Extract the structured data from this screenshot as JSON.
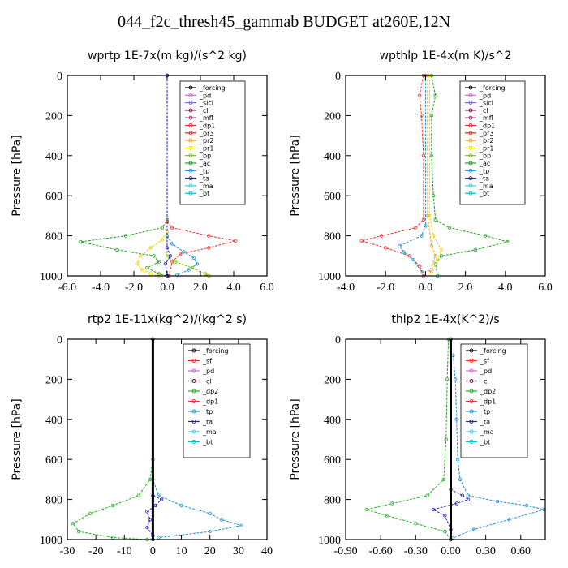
{
  "title": "044_f2c_thresh45_gammab  BUDGET at260E,12N",
  "colors": {
    "_forcing": "#000000",
    "_pd": "#cc66cc",
    "_sicl": "#7b6fd0",
    "_cl": "#800040",
    "_mfl": "#b00058",
    "_dp1": "#f03030",
    "_pr3": "#f02020",
    "_pr2": "#f0a020",
    "_pr1": "#f0d000",
    "_bp": "#80c000",
    "_ac": "#20a020",
    "_tp": "#2090d0",
    "_ta": "#2020c0",
    "_ma": "#40c8e0",
    "_bt": "#00c0d0",
    "_sf": "#f03030",
    "_dp2": "#20b020"
  },
  "chart_data": [
    {
      "type": "line",
      "title": "wprtp   1E-7x(m kg)/(s^2 kg)",
      "ylabel": "Pressure  [hPa]",
      "xlim": [
        -6,
        6
      ],
      "ylim": [
        0,
        1000
      ],
      "xticks": [
        -6,
        -4,
        -2,
        0,
        2,
        4,
        6
      ],
      "xtick_labels": [
        "-6.0",
        "-4.0",
        "-2.0",
        "0.0",
        "2.0",
        "4.0",
        "6.0"
      ],
      "yticks": [
        0,
        200,
        400,
        600,
        800,
        1000
      ],
      "ytick_labels": [
        "0",
        "200",
        "400",
        "600",
        "800",
        "1000"
      ],
      "legend_position": "top-right",
      "legend": [
        "_forcing",
        "_pd",
        "_sicl",
        "_cl",
        "_mfl",
        "_dp1",
        "_pr3",
        "_pr2",
        "_pr1",
        "_bp",
        "_ac",
        "_tp",
        "_ta",
        "_ma",
        "_bt"
      ],
      "series": [
        {
          "name": "_ac",
          "values": [
            [
              0,
              0
            ],
            [
              0,
              720
            ],
            [
              -0.3,
              760
            ],
            [
              -2.5,
              800
            ],
            [
              -5.2,
              830
            ],
            [
              -3,
              870
            ],
            [
              -0.8,
              900
            ],
            [
              -0.5,
              930
            ],
            [
              -1.2,
              960
            ],
            [
              -0.5,
              990
            ],
            [
              0,
              1000
            ]
          ]
        },
        {
          "name": "_dp1",
          "values": [
            [
              0,
              0
            ],
            [
              0,
              730
            ],
            [
              0.3,
              760
            ],
            [
              2.5,
              800
            ],
            [
              4.1,
              825
            ],
            [
              2.5,
              860
            ],
            [
              0.8,
              890
            ],
            [
              0.3,
              930
            ],
            [
              0.1,
              1000
            ]
          ]
        },
        {
          "name": "_pr1",
          "values": [
            [
              0,
              0
            ],
            [
              0,
              780
            ],
            [
              -0.3,
              820
            ],
            [
              -1,
              860
            ],
            [
              -1.6,
              900
            ],
            [
              -1.8,
              940
            ],
            [
              -1.5,
              970
            ],
            [
              -1,
              990
            ],
            [
              -0.5,
              1000
            ]
          ]
        },
        {
          "name": "_tp",
          "values": [
            [
              0,
              0
            ],
            [
              0,
              800
            ],
            [
              0.3,
              840
            ],
            [
              1,
              880
            ],
            [
              1.6,
              910
            ],
            [
              1.8,
              940
            ],
            [
              1.3,
              970
            ],
            [
              0.6,
              995
            ]
          ]
        },
        {
          "name": "_bp",
          "values": [
            [
              0,
              0
            ],
            [
              0,
              900
            ],
            [
              0.5,
              930
            ],
            [
              1.5,
              960
            ],
            [
              2.3,
              990
            ],
            [
              2.5,
              1000
            ]
          ]
        },
        {
          "name": "_ta",
          "values": [
            [
              0,
              0
            ],
            [
              0,
              860
            ],
            [
              0.2,
              900
            ],
            [
              -0.1,
              940
            ],
            [
              0,
              1000
            ]
          ]
        }
      ]
    },
    {
      "type": "line",
      "title": "wpthlp   1E-4x(m K)/s^2",
      "ylabel": "Pressure  [hPa]",
      "xlim": [
        -4,
        6
      ],
      "ylim": [
        0,
        1000
      ],
      "xticks": [
        -4,
        -2,
        0,
        2,
        4,
        6
      ],
      "xtick_labels": [
        "-4.0",
        "-2.0",
        "0.0",
        "2.0",
        "4.0",
        "6.0"
      ],
      "yticks": [
        0,
        200,
        400,
        600,
        800,
        1000
      ],
      "ytick_labels": [
        "0",
        "200",
        "400",
        "600",
        "800",
        "1000"
      ],
      "legend_position": "top-right",
      "legend": [
        "_forcing",
        "_pd",
        "_sicl",
        "_cl",
        "_mfl",
        "_dp1",
        "_pr3",
        "_pr2",
        "_pr1",
        "_bp",
        "_ac",
        "_tp",
        "_ta",
        "_ma",
        "_bt"
      ],
      "series": [
        {
          "name": "_ac",
          "values": [
            [
              0.3,
              0
            ],
            [
              0.5,
              100
            ],
            [
              0.3,
              200
            ],
            [
              0.3,
              400
            ],
            [
              0.4,
              600
            ],
            [
              0.5,
              720
            ],
            [
              1.2,
              760
            ],
            [
              3,
              800
            ],
            [
              4.1,
              830
            ],
            [
              2.5,
              870
            ],
            [
              0.8,
              900
            ],
            [
              0.5,
              940
            ],
            [
              0.6,
              1000
            ]
          ]
        },
        {
          "name": "_dp1",
          "values": [
            [
              -0.1,
              0
            ],
            [
              -0.3,
              100
            ],
            [
              -0.2,
              200
            ],
            [
              -0.1,
              400
            ],
            [
              -0.1,
              720
            ],
            [
              -0.5,
              760
            ],
            [
              -2.2,
              800
            ],
            [
              -3.2,
              825
            ],
            [
              -2,
              860
            ],
            [
              -0.8,
              900
            ],
            [
              -0.3,
              950
            ],
            [
              -0.1,
              1000
            ]
          ]
        },
        {
          "name": "_tp",
          "values": [
            [
              0,
              0
            ],
            [
              0,
              750
            ],
            [
              -0.2,
              800
            ],
            [
              -1.3,
              850
            ],
            [
              -1.1,
              880
            ],
            [
              -0.6,
              920
            ],
            [
              -0.2,
              980
            ]
          ]
        },
        {
          "name": "_pr1",
          "values": [
            [
              0.2,
              0
            ],
            [
              0.2,
              700
            ],
            [
              0.4,
              800
            ],
            [
              0.8,
              870
            ],
            [
              0.6,
              920
            ],
            [
              0.3,
              980
            ]
          ]
        },
        {
          "name": "_pr2",
          "values": [
            [
              0.1,
              0
            ],
            [
              0.1,
              700
            ],
            [
              0.3,
              850
            ],
            [
              0.5,
              900
            ],
            [
              0.2,
              980
            ]
          ]
        }
      ]
    },
    {
      "type": "line",
      "title": "rtp2   1E-11x(kg^2)/(kg^2 s)",
      "ylabel": "Pressure  [hPa]",
      "xlim": [
        -30,
        40
      ],
      "ylim": [
        0,
        1000
      ],
      "xticks": [
        -30,
        -20,
        -10,
        0,
        10,
        20,
        30,
        40
      ],
      "xtick_labels": [
        "-30",
        "-20",
        "-10",
        "0",
        "10",
        "20",
        "30",
        "40"
      ],
      "yticks": [
        0,
        200,
        400,
        600,
        800,
        1000
      ],
      "ytick_labels": [
        "0",
        "200",
        "400",
        "600",
        "800",
        "1000"
      ],
      "legend_position": "top-right",
      "legend": [
        "_forcing",
        "_sf",
        "_pd",
        "_cl",
        "_dp2",
        "_dp1",
        "_tp",
        "_ta",
        "_ma",
        "_bt"
      ],
      "series": [
        {
          "name": "_dp2",
          "values": [
            [
              0,
              0
            ],
            [
              0,
              600
            ],
            [
              -1,
              700
            ],
            [
              -5,
              780
            ],
            [
              -14,
              830
            ],
            [
              -22,
              870
            ],
            [
              -28,
              920
            ],
            [
              -26,
              960
            ],
            [
              -14,
              990
            ],
            [
              -2,
              1000
            ]
          ]
        },
        {
          "name": "_tp",
          "values": [
            [
              0,
              0
            ],
            [
              0,
              700
            ],
            [
              2,
              780
            ],
            [
              10,
              830
            ],
            [
              20,
              870
            ],
            [
              24,
              900
            ],
            [
              31,
              930
            ],
            [
              20,
              960
            ],
            [
              2,
              990
            ]
          ]
        },
        {
          "name": "_ta",
          "values": [
            [
              0,
              0
            ],
            [
              0,
              780
            ],
            [
              3,
              800
            ],
            [
              1,
              830
            ],
            [
              -2,
              860
            ],
            [
              -1,
              900
            ],
            [
              -2,
              940
            ],
            [
              0,
              980
            ]
          ]
        },
        {
          "name": "_forcing",
          "values": [
            [
              0,
              0
            ],
            [
              0,
              1000
            ]
          ]
        }
      ]
    },
    {
      "type": "line",
      "title": "thlp2   1E-4x(K^2)/s",
      "ylabel": "Pressure  [hPa]",
      "xlim": [
        -0.9,
        0.81
      ],
      "ylim": [
        0,
        1000
      ],
      "xticks": [
        -0.9,
        -0.6,
        -0.3,
        0,
        0.3,
        0.6
      ],
      "xtick_labels": [
        "-0.90",
        "-0.60",
        "-0.30",
        "0.00",
        "0.30",
        "0.60"
      ],
      "yticks": [
        0,
        200,
        400,
        600,
        800,
        1000
      ],
      "ytick_labels": [
        "0",
        "200",
        "400",
        "600",
        "800",
        "1000"
      ],
      "legend_position": "top-right",
      "legend": [
        "_forcing",
        "_sf",
        "_pd",
        "_cl",
        "_dp2",
        "_dp1",
        "_tp",
        "_ta",
        "_ma",
        "_bt"
      ],
      "series": [
        {
          "name": "_dp2",
          "values": [
            [
              -0.02,
              0
            ],
            [
              -0.03,
              200
            ],
            [
              -0.04,
              500
            ],
            [
              -0.06,
              700
            ],
            [
              -0.2,
              780
            ],
            [
              -0.5,
              820
            ],
            [
              -0.72,
              850
            ],
            [
              -0.55,
              880
            ],
            [
              -0.3,
              920
            ],
            [
              -0.05,
              960
            ],
            [
              0,
              1000
            ]
          ]
        },
        {
          "name": "_tp",
          "values": [
            [
              0.02,
              80
            ],
            [
              0.04,
              200
            ],
            [
              0.05,
              400
            ],
            [
              0.06,
              600
            ],
            [
              0.08,
              700
            ],
            [
              0.15,
              780
            ],
            [
              0.4,
              810
            ],
            [
              0.65,
              830
            ],
            [
              0.8,
              850
            ],
            [
              0.5,
              900
            ],
            [
              0.2,
              950
            ],
            [
              0.02,
              990
            ]
          ]
        },
        {
          "name": "_ta",
          "values": [
            [
              0,
              0
            ],
            [
              0,
              750
            ],
            [
              0.1,
              780
            ],
            [
              0.15,
              800
            ],
            [
              0.05,
              820
            ],
            [
              -0.15,
              850
            ],
            [
              -0.05,
              880
            ],
            [
              0,
              950
            ]
          ]
        },
        {
          "name": "_forcing",
          "values": [
            [
              0,
              0
            ],
            [
              0,
              1000
            ]
          ]
        }
      ]
    }
  ]
}
